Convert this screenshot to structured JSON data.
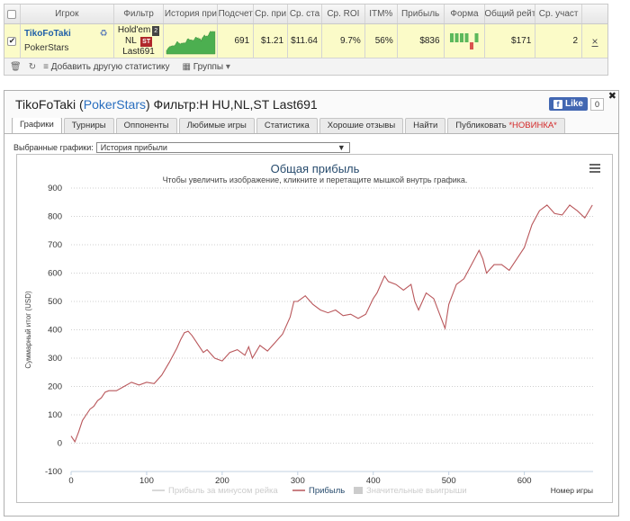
{
  "top_table": {
    "headers": [
      "Игрок",
      "Фильтр",
      "История при",
      "Подсчет",
      "Ср. при",
      "Ср. ста",
      "Ср. ROI",
      "ITM%",
      "Прибыль",
      "Форма",
      "Общий рейт",
      "Ср. участ"
    ],
    "row": {
      "player_name": "TikoFoTaki",
      "site": "PokerStars",
      "filter_line1": "Hold'em",
      "filter_badge_2": "2",
      "filter_line2": "NL",
      "filter_badge_st": "ST",
      "filter_line3": "Last691",
      "count": "691",
      "avg_profit": "$1.21",
      "avg_stake": "$11.64",
      "avg_roi": "9.7%",
      "itm": "56%",
      "profit": "$836",
      "total_rake": "$171",
      "avg_entrants": "2",
      "close_icon": "×"
    },
    "footer": {
      "add_stat_label": "Добавить другую статистику",
      "groups_label": "Группы"
    },
    "form_bars": [
      1,
      1,
      1,
      1,
      -1,
      1
    ],
    "colors": {
      "form_green": "#5cb85c",
      "form_red": "#d9534f",
      "row_bg": "#fbfbc8"
    }
  },
  "panel": {
    "player": "TikoFoTaki",
    "site": "PokerStars",
    "filter_text": "Фильтр:H HU,NL,ST Last691",
    "fb_like_label": "Like",
    "fb_like_count": "0",
    "tabs": [
      {
        "label": "Графики",
        "active": true
      },
      {
        "label": "Турниры"
      },
      {
        "label": "Оппоненты"
      },
      {
        "label": "Любимые игры"
      },
      {
        "label": "Статистика"
      },
      {
        "label": "Хорошие отзывы"
      },
      {
        "label": "Найти"
      },
      {
        "label": "Публиковать",
        "badge": "*НОВИНКА*"
      }
    ],
    "selector_label": "Выбранные графики:",
    "selector_value": "История прибыли"
  },
  "chart_data": {
    "type": "line",
    "title": "Общая прибыль",
    "subtitle": "Чтобы увеличить изображение, кликните и перетащите мышкой внутрь графика.",
    "xlabel": "Номер игры",
    "ylabel": "Суммарный итог (USD)",
    "xlim": [
      0,
      691
    ],
    "ylim": [
      -100,
      900
    ],
    "x_ticks": [
      0,
      100,
      200,
      300,
      400,
      500,
      600
    ],
    "y_ticks": [
      -100,
      0,
      100,
      200,
      300,
      400,
      500,
      600,
      700,
      800,
      900
    ],
    "legend": [
      {
        "name": "Прибыль за минусом рейка",
        "color": "#cccccc"
      },
      {
        "name": "Прибыль",
        "color": "#b9575b"
      },
      {
        "name": "Значительные выигрыши",
        "color": "#cccccc"
      }
    ],
    "legend_position": "bottom",
    "grid": true,
    "series": [
      {
        "name": "Прибыль",
        "color": "#b9575b",
        "x": [
          0,
          5,
          10,
          15,
          20,
          25,
          30,
          35,
          40,
          45,
          50,
          60,
          70,
          80,
          90,
          100,
          110,
          120,
          130,
          140,
          145,
          150,
          155,
          160,
          165,
          170,
          175,
          180,
          190,
          200,
          210,
          220,
          230,
          235,
          240,
          250,
          260,
          270,
          280,
          290,
          295,
          300,
          310,
          320,
          330,
          340,
          350,
          360,
          370,
          380,
          390,
          400,
          405,
          410,
          415,
          420,
          430,
          440,
          450,
          455,
          460,
          470,
          480,
          490,
          495,
          500,
          510,
          520,
          530,
          540,
          545,
          550,
          560,
          570,
          580,
          590,
          600,
          610,
          620,
          630,
          640,
          650,
          660,
          670,
          680,
          690
        ],
        "values": [
          25,
          5,
          40,
          80,
          100,
          120,
          130,
          150,
          160,
          180,
          185,
          185,
          200,
          215,
          205,
          215,
          210,
          240,
          285,
          335,
          365,
          390,
          395,
          380,
          360,
          340,
          320,
          330,
          300,
          290,
          320,
          330,
          310,
          340,
          300,
          345,
          325,
          355,
          385,
          445,
          500,
          500,
          520,
          490,
          470,
          460,
          470,
          450,
          455,
          440,
          455,
          510,
          530,
          560,
          590,
          570,
          560,
          540,
          560,
          500,
          470,
          530,
          510,
          440,
          405,
          490,
          560,
          580,
          630,
          680,
          650,
          600,
          630,
          630,
          610,
          650,
          690,
          770,
          820,
          840,
          810,
          805,
          840,
          820,
          795,
          840
        ]
      }
    ]
  }
}
